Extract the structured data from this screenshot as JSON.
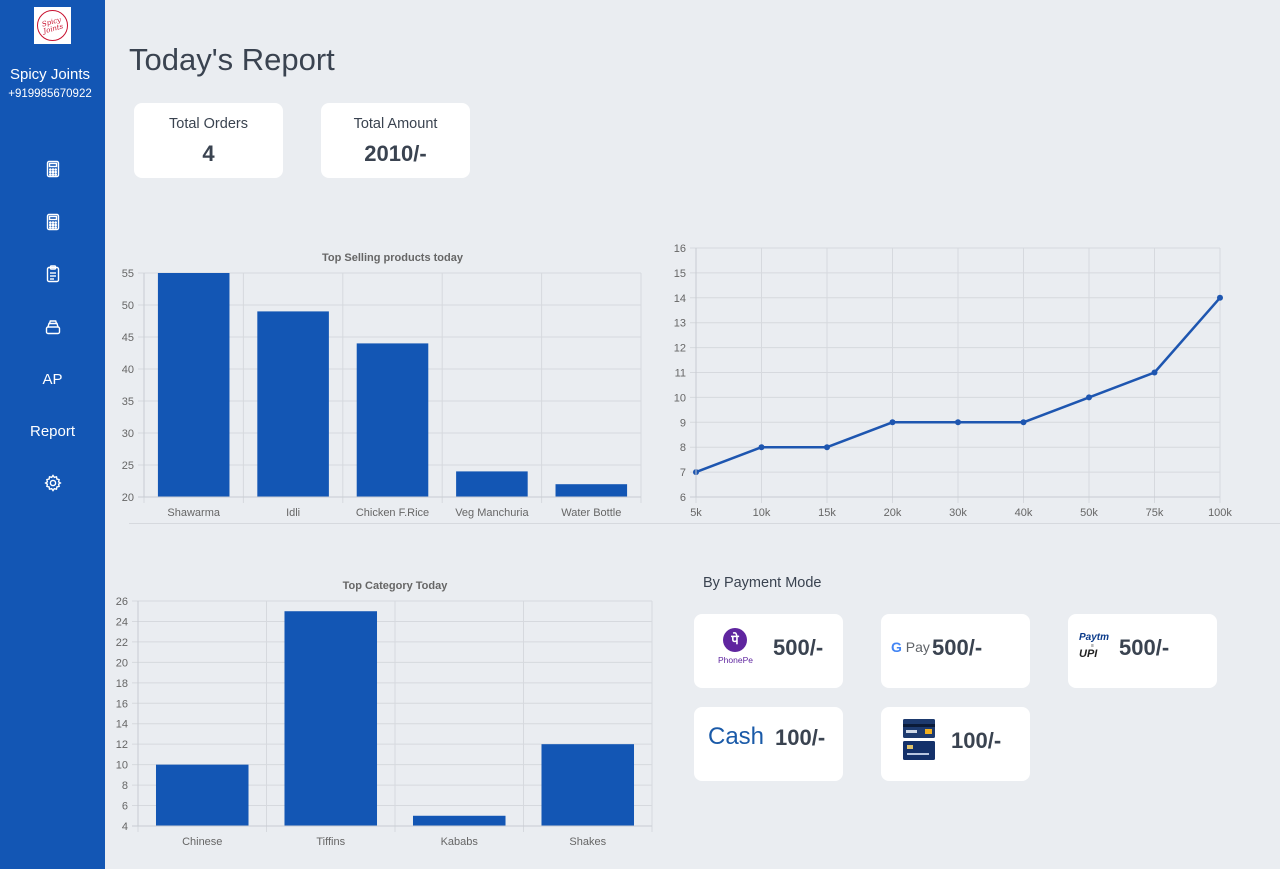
{
  "sidebar": {
    "logo_text": "Spicy Joints",
    "brand_name": "Spicy Joints",
    "phone": "+919985670922",
    "items": [
      {
        "icon": "calculator-icon"
      },
      {
        "icon": "calculator-icon"
      },
      {
        "icon": "clipboard-icon"
      },
      {
        "icon": "stack-icon"
      },
      {
        "label": "AP"
      },
      {
        "label": "Report"
      },
      {
        "icon": "gear-icon"
      }
    ]
  },
  "page": {
    "title": "Today's Report"
  },
  "stats": {
    "total_orders_label": "Total Orders",
    "total_orders_value": "4",
    "total_amount_label": "Total Amount",
    "total_amount_value": "2010/-"
  },
  "colors": {
    "sidebar": "#1356b4",
    "bar": "#1356b4",
    "line": "#1e56b0",
    "background": "#eaedf1"
  },
  "chart_data": [
    {
      "type": "bar",
      "title": "Top Selling products today",
      "categories": [
        "Shawarma",
        "Idli",
        "Chicken F.Rice",
        "Veg Manchuria",
        "Water Bottle"
      ],
      "values": [
        55,
        49,
        44,
        24,
        22
      ],
      "ylim": [
        20,
        55
      ],
      "yticks": [
        20,
        25,
        30,
        35,
        40,
        45,
        50,
        55
      ],
      "grid": true
    },
    {
      "type": "line",
      "title": "",
      "x": [
        "5k",
        "10k",
        "15k",
        "20k",
        "30k",
        "40k",
        "50k",
        "75k",
        "100k"
      ],
      "values": [
        7,
        8,
        8,
        9,
        9,
        9,
        10,
        11,
        14
      ],
      "ylim": [
        6,
        16
      ],
      "yticks": [
        6,
        7,
        8,
        9,
        10,
        11,
        12,
        13,
        14,
        15,
        16
      ],
      "grid": true
    },
    {
      "type": "bar",
      "title": "Top Category Today",
      "categories": [
        "Chinese",
        "Tiffins",
        "Kababs",
        "Shakes"
      ],
      "values": [
        10,
        25,
        5,
        12
      ],
      "ylim": [
        4,
        26
      ],
      "yticks": [
        4,
        6,
        8,
        10,
        12,
        14,
        16,
        18,
        20,
        22,
        24,
        26
      ],
      "grid": true
    }
  ],
  "payments": {
    "title": "By Payment Mode",
    "phonepe_label": "PhonePe",
    "phonepe_amount": "500/-",
    "gpay_label": "Pay",
    "gpay_amount": "500/-",
    "paytm_label": "Paytm",
    "paytm_connector": "≡",
    "paytm_upi": "UPI",
    "paytm_amount": "500/-",
    "cash_label": "Cash",
    "cash_amount": "100/-",
    "card_icon": "card-icon",
    "card_amount": "100/-"
  }
}
